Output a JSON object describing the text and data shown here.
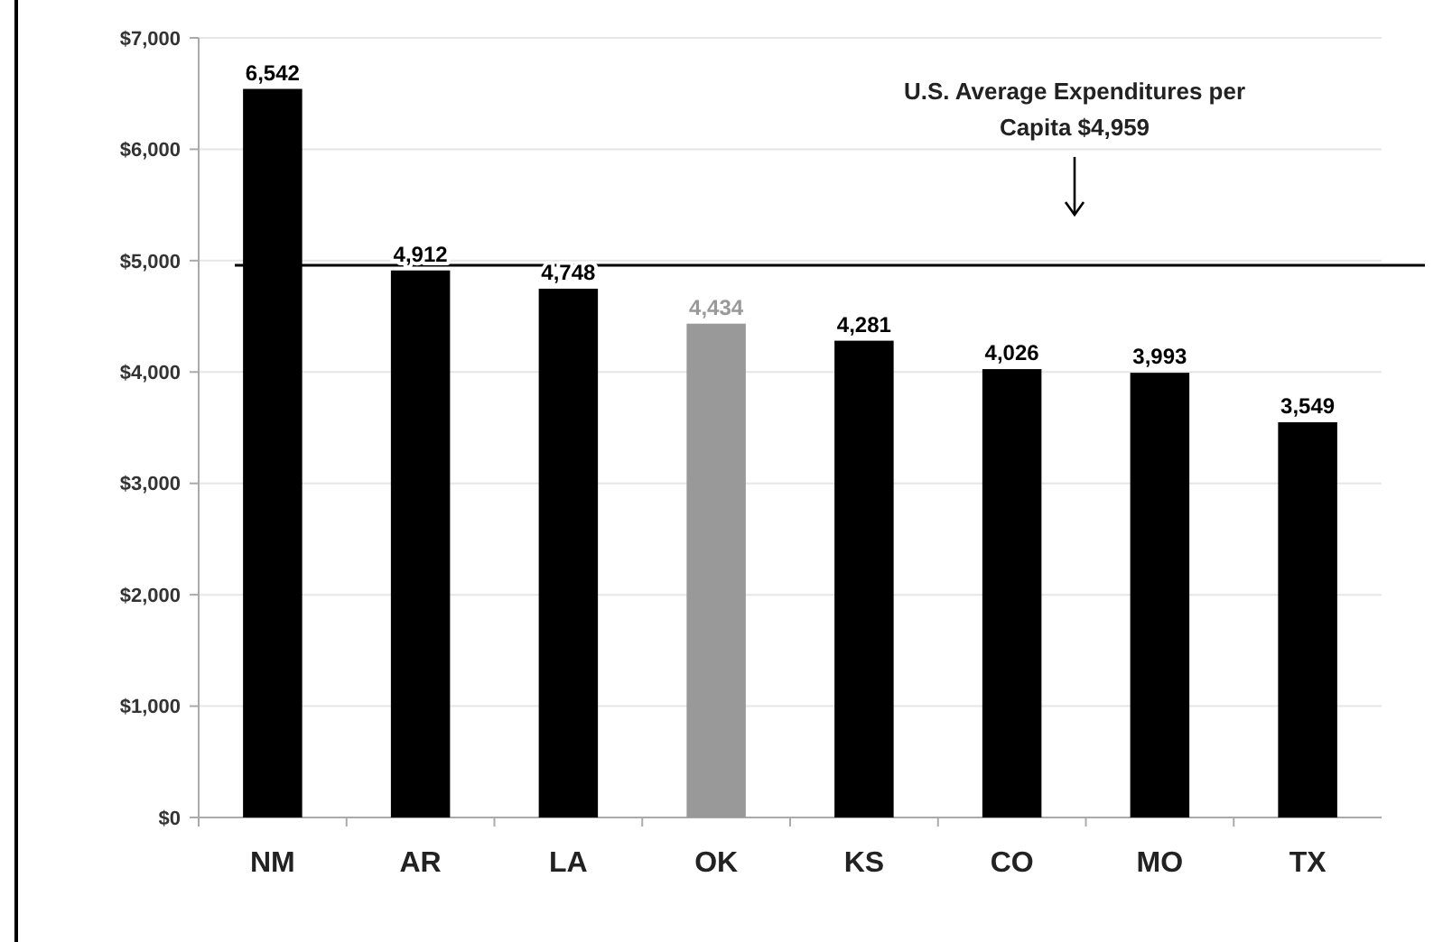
{
  "chart_data": {
    "type": "bar",
    "categories": [
      "NM",
      "AR",
      "LA",
      "OK",
      "KS",
      "CO",
      "MO",
      "TX"
    ],
    "values": [
      6542,
      4912,
      4748,
      4434,
      4281,
      4026,
      3993,
      3549
    ],
    "colors": [
      "#000000",
      "#000000",
      "#000000",
      "#999999",
      "#000000",
      "#000000",
      "#000000",
      "#000000"
    ],
    "value_labels": [
      "6,542",
      "4,912",
      "4,748",
      "4,434",
      "4,281",
      "4,026",
      "3,993",
      "3,549"
    ],
    "ylim": [
      0,
      7000
    ],
    "yticks": [
      {
        "value": 0,
        "label": "$0"
      },
      {
        "value": 1000,
        "label": "$1,000"
      },
      {
        "value": 2000,
        "label": "$2,000"
      },
      {
        "value": 3000,
        "label": "$3,000"
      },
      {
        "value": 4000,
        "label": "$4,000"
      },
      {
        "value": 5000,
        "label": "$5,000"
      },
      {
        "value": 6000,
        "label": "$6,000"
      },
      {
        "value": 7000,
        "label": "$7,000"
      }
    ],
    "grid": "y",
    "ref_lines": [
      {
        "axis": "y",
        "value": 4959,
        "label": "U.S. Average Expenditures per Capita $4,959",
        "color": "#000000"
      }
    ]
  }
}
